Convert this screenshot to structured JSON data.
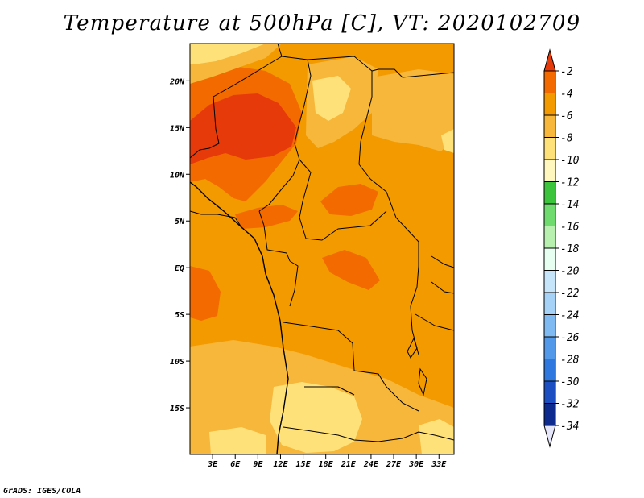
{
  "title": "Temperature at 500hPa [C], VT: 2020102709",
  "credit": "GrADS: IGES/COLA",
  "map": {
    "region": "Central Africa",
    "lat_range": [
      -20,
      24
    ],
    "lon_range": [
      0,
      35
    ],
    "lat_ticks": [
      {
        "value": 20,
        "label": "20N"
      },
      {
        "value": 15,
        "label": "15N"
      },
      {
        "value": 10,
        "label": "10N"
      },
      {
        "value": 5,
        "label": "5N"
      },
      {
        "value": 0,
        "label": "EQ"
      },
      {
        "value": -5,
        "label": "5S"
      },
      {
        "value": -10,
        "label": "10S"
      },
      {
        "value": -15,
        "label": "15S"
      }
    ],
    "lon_ticks": [
      {
        "value": 3,
        "label": "3E"
      },
      {
        "value": 6,
        "label": "6E"
      },
      {
        "value": 9,
        "label": "9E"
      },
      {
        "value": 12,
        "label": "12E"
      },
      {
        "value": 15,
        "label": "15E"
      },
      {
        "value": 18,
        "label": "18E"
      },
      {
        "value": 21,
        "label": "21E"
      },
      {
        "value": 24,
        "label": "24E"
      },
      {
        "value": 27,
        "label": "27E"
      },
      {
        "value": 30,
        "label": "30E"
      },
      {
        "value": 33,
        "label": "33E"
      }
    ]
  },
  "colorbar": {
    "labels": [
      "-2",
      "-4",
      "-6",
      "-8",
      "-10",
      "-12",
      "-14",
      "-16",
      "-18",
      "-20",
      "-22",
      "-24",
      "-26",
      "-28",
      "-30",
      "-32",
      "-34"
    ],
    "colors": [
      "#e63a0a",
      "#f26a00",
      "#f39a00",
      "#f7b73a",
      "#ffe17a",
      "#fff7bd",
      "#3cc43c",
      "#6fdb6f",
      "#b8f0b0",
      "#e6fff0",
      "#c7e5fa",
      "#a6d2f7",
      "#7fbaf2",
      "#5399ea",
      "#2e78df",
      "#1b4fc2",
      "#0d2a8e",
      "#07106a"
    ],
    "top_color": "#e63a0a",
    "bottom_color": "#e6e6fa"
  }
}
